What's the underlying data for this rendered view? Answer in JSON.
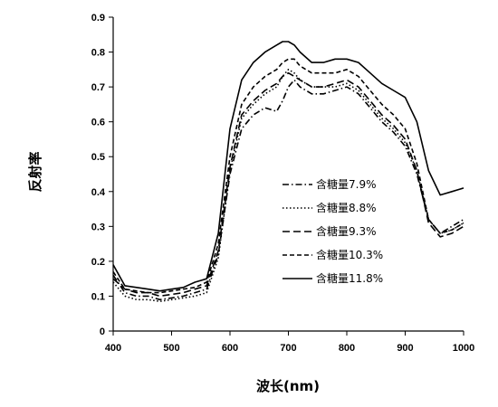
{
  "chart_data": {
    "type": "line",
    "title": "",
    "xlabel": "波长(nm)",
    "ylabel": "反射率",
    "xlim": [
      400,
      1000
    ],
    "ylim": [
      0,
      0.9
    ],
    "xticks": [
      400,
      500,
      600,
      700,
      800,
      900,
      1000
    ],
    "yticks": [
      0,
      0.1,
      0.2,
      0.3,
      0.4,
      0.5,
      0.6,
      0.7,
      0.8,
      0.9
    ],
    "grid": false,
    "legend_position": "center-right",
    "series": [
      {
        "name": "含糖量7.9%",
        "style": "dashdot",
        "x": [
          400,
          420,
          440,
          460,
          480,
          500,
          520,
          540,
          560,
          580,
          600,
          620,
          640,
          660,
          680,
          690,
          700,
          710,
          720,
          740,
          760,
          780,
          800,
          820,
          840,
          860,
          880,
          900,
          920,
          940,
          960,
          980,
          1000
        ],
        "y": [
          0.16,
          0.11,
          0.1,
          0.1,
          0.09,
          0.095,
          0.1,
          0.11,
          0.12,
          0.22,
          0.45,
          0.58,
          0.62,
          0.64,
          0.63,
          0.66,
          0.7,
          0.72,
          0.7,
          0.68,
          0.68,
          0.69,
          0.7,
          0.68,
          0.64,
          0.6,
          0.57,
          0.53,
          0.45,
          0.32,
          0.28,
          0.3,
          0.32
        ]
      },
      {
        "name": "含糖量8.8%",
        "style": "dotted",
        "x": [
          400,
          420,
          440,
          460,
          480,
          500,
          520,
          540,
          560,
          580,
          600,
          620,
          640,
          660,
          680,
          690,
          700,
          710,
          720,
          740,
          760,
          780,
          800,
          820,
          840,
          860,
          880,
          900,
          920,
          940,
          960,
          980,
          1000
        ],
        "y": [
          0.14,
          0.1,
          0.09,
          0.09,
          0.085,
          0.09,
          0.095,
          0.1,
          0.11,
          0.21,
          0.46,
          0.61,
          0.65,
          0.68,
          0.7,
          0.73,
          0.75,
          0.74,
          0.72,
          0.7,
          0.7,
          0.7,
          0.71,
          0.69,
          0.65,
          0.61,
          0.58,
          0.54,
          0.46,
          0.32,
          0.28,
          0.29,
          0.31
        ]
      },
      {
        "name": "含糖量9.3%",
        "style": "longdash",
        "x": [
          400,
          420,
          440,
          460,
          480,
          500,
          520,
          540,
          560,
          580,
          600,
          620,
          640,
          660,
          680,
          690,
          700,
          710,
          720,
          740,
          760,
          780,
          800,
          820,
          840,
          860,
          880,
          900,
          920,
          940,
          960,
          980,
          1000
        ],
        "y": [
          0.15,
          0.12,
          0.11,
          0.11,
          0.1,
          0.105,
          0.11,
          0.12,
          0.13,
          0.23,
          0.47,
          0.62,
          0.66,
          0.69,
          0.71,
          0.73,
          0.74,
          0.73,
          0.72,
          0.7,
          0.7,
          0.71,
          0.72,
          0.7,
          0.66,
          0.62,
          0.59,
          0.55,
          0.46,
          0.31,
          0.27,
          0.28,
          0.3
        ]
      },
      {
        "name": "含糖量10.3%",
        "style": "dashed",
        "x": [
          400,
          420,
          440,
          460,
          480,
          500,
          520,
          540,
          560,
          580,
          600,
          620,
          640,
          660,
          680,
          690,
          700,
          710,
          720,
          740,
          760,
          780,
          800,
          820,
          840,
          860,
          880,
          900,
          920,
          940,
          960,
          980,
          1000
        ],
        "y": [
          0.17,
          0.12,
          0.115,
          0.11,
          0.11,
          0.115,
          0.12,
          0.125,
          0.14,
          0.25,
          0.5,
          0.65,
          0.7,
          0.73,
          0.75,
          0.77,
          0.78,
          0.78,
          0.76,
          0.74,
          0.74,
          0.74,
          0.75,
          0.73,
          0.69,
          0.65,
          0.62,
          0.58,
          0.48,
          0.32,
          0.28,
          0.29,
          0.31
        ]
      },
      {
        "name": "含糖量11.8%",
        "style": "solid",
        "x": [
          400,
          420,
          440,
          460,
          480,
          500,
          520,
          540,
          550,
          560,
          580,
          600,
          620,
          640,
          660,
          680,
          690,
          700,
          710,
          720,
          740,
          760,
          780,
          800,
          820,
          840,
          860,
          880,
          900,
          920,
          940,
          960,
          980,
          1000
        ],
        "y": [
          0.19,
          0.13,
          0.125,
          0.12,
          0.115,
          0.12,
          0.125,
          0.14,
          0.145,
          0.15,
          0.28,
          0.58,
          0.72,
          0.77,
          0.8,
          0.82,
          0.83,
          0.83,
          0.82,
          0.8,
          0.77,
          0.77,
          0.78,
          0.78,
          0.77,
          0.74,
          0.71,
          0.69,
          0.67,
          0.6,
          0.46,
          0.39,
          0.4,
          0.41
        ]
      }
    ]
  }
}
